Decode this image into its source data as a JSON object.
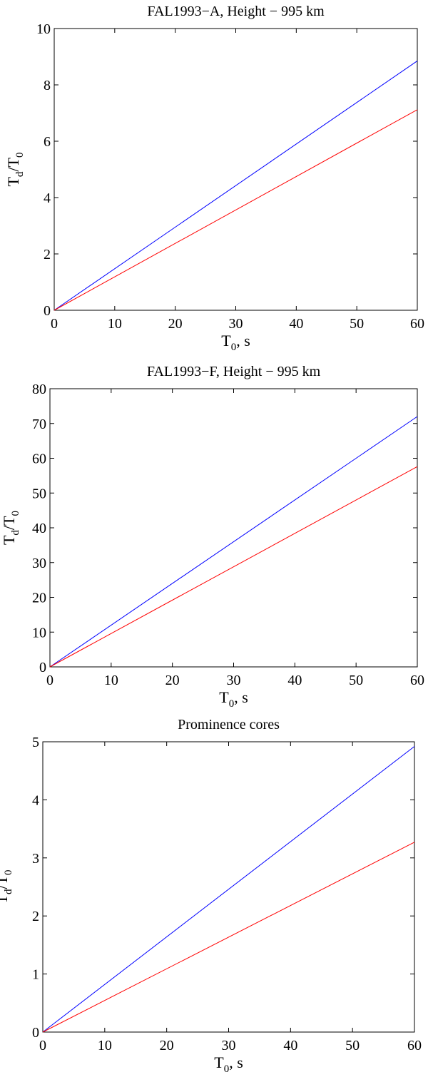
{
  "chart_data": [
    {
      "type": "line",
      "title": "FAL1993−A, Height − 995 km",
      "xlabel": {
        "base": "T",
        "sub": "0",
        "rest": ", s"
      },
      "ylabel": {
        "base1": "T",
        "sub1": "d",
        "mid": "/T",
        "sub2": "0"
      },
      "xlim": [
        0,
        60
      ],
      "ylim": [
        0,
        10
      ],
      "xticks": [
        0,
        10,
        20,
        30,
        40,
        50,
        60
      ],
      "yticks": [
        0,
        2,
        4,
        6,
        8,
        10
      ],
      "grid": false,
      "series": [
        {
          "color": "#0000ff",
          "x": [
            0,
            60
          ],
          "y": [
            0,
            8.85
          ]
        },
        {
          "color": "#ff0000",
          "x": [
            0,
            60
          ],
          "y": [
            0,
            7.12
          ]
        }
      ]
    },
    {
      "type": "line",
      "title": "FAL1993−F, Height − 995 km",
      "xlabel": {
        "base": "T",
        "sub": "0",
        "rest": ", s"
      },
      "ylabel": {
        "base1": "T",
        "sub1": "d",
        "mid": "/T",
        "sub2": "0"
      },
      "xlim": [
        0,
        60
      ],
      "ylim": [
        0,
        80
      ],
      "xticks": [
        0,
        10,
        20,
        30,
        40,
        50,
        60
      ],
      "yticks": [
        0,
        10,
        20,
        30,
        40,
        50,
        60,
        70,
        80
      ],
      "grid": false,
      "series": [
        {
          "color": "#0000ff",
          "x": [
            0,
            60
          ],
          "y": [
            0,
            72.0
          ]
        },
        {
          "color": "#ff0000",
          "x": [
            0,
            60
          ],
          "y": [
            0,
            57.6
          ]
        }
      ]
    },
    {
      "type": "line",
      "title": "Prominence cores",
      "xlabel": {
        "base": "T",
        "sub": "0",
        "rest": ", s"
      },
      "ylabel": {
        "base1": "T",
        "sub1": "d",
        "mid": "/T",
        "sub2": "0"
      },
      "xlim": [
        0,
        60
      ],
      "ylim": [
        0,
        5
      ],
      "xticks": [
        0,
        10,
        20,
        30,
        40,
        50,
        60
      ],
      "yticks": [
        0,
        1,
        2,
        3,
        4,
        5
      ],
      "grid": false,
      "series": [
        {
          "color": "#0000ff",
          "x": [
            0,
            60
          ],
          "y": [
            0,
            4.92
          ]
        },
        {
          "color": "#ff0000",
          "x": [
            0,
            60
          ],
          "y": [
            0,
            3.27
          ]
        }
      ]
    }
  ]
}
